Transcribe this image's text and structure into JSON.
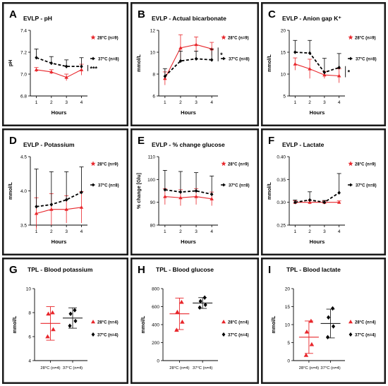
{
  "colors": {
    "warm": "#e8262b",
    "cold": "#000000",
    "border": "#1a1a1a"
  },
  "chart_data": [
    {
      "id": "A",
      "type": "line",
      "title": "EVLP - pH",
      "xlabel": "Hours",
      "ylabel": "pH",
      "x": [
        1,
        2,
        3,
        4
      ],
      "xlim": [
        0.6,
        4.4
      ],
      "ylim": [
        6.8,
        7.4
      ],
      "yticks": [
        "6.8",
        "7.0",
        "7.2",
        "7.4"
      ],
      "ytick_vals": [
        6.8,
        7.0,
        7.2,
        7.4
      ],
      "legend_warm": "28°C (n=9)",
      "legend_cold": "37°C (n=8)",
      "significance": "***",
      "series": [
        {
          "name": "28°C (n=9)",
          "values": [
            7.04,
            7.02,
            6.97,
            7.04
          ],
          "err": [
            0.02,
            0.02,
            0.03,
            0.05
          ]
        },
        {
          "name": "37°C (n=8)",
          "values": [
            7.15,
            7.1,
            7.07,
            7.07
          ],
          "err": [
            0.08,
            0.06,
            0.06,
            0.08
          ]
        }
      ]
    },
    {
      "id": "B",
      "type": "line",
      "title": "EVLP - Actual bicarbonate",
      "xlabel": "Hours",
      "ylabel": "mmol/L",
      "x": [
        1,
        2,
        3,
        4
      ],
      "xlim": [
        0.6,
        4.4
      ],
      "ylim": [
        6,
        12
      ],
      "yticks": [
        "6",
        "8",
        "10",
        "12"
      ],
      "ytick_vals": [
        6,
        8,
        10,
        12
      ],
      "legend_warm": "28°C (n=9)",
      "legend_cold": "37°C (n=8)",
      "significance": "*",
      "series": [
        {
          "name": "28°C (n=9)",
          "values": [
            7.6,
            10.4,
            10.7,
            10.3
          ],
          "err": [
            0.6,
            1.2,
            0.7,
            0.6
          ]
        },
        {
          "name": "37°C (n=8)",
          "values": [
            7.8,
            9.2,
            9.4,
            9.3
          ],
          "err": [
            0.7,
            0.9,
            0.7,
            1.0
          ]
        }
      ]
    },
    {
      "id": "C",
      "type": "line",
      "title": "EVLP - Anion gap K⁺",
      "xlabel": "Hours",
      "ylabel": "mmol/L",
      "x": [
        1,
        2,
        3,
        4
      ],
      "xlim": [
        0.6,
        4.4
      ],
      "ylim": [
        5,
        20
      ],
      "yticks": [
        "5",
        "10",
        "15",
        "20"
      ],
      "ytick_vals": [
        5,
        10,
        15,
        20
      ],
      "legend_warm": "28°C (n=9)",
      "legend_cold": "37°C (n=8)",
      "significance": "*",
      "series": [
        {
          "name": "28°C (n=9)",
          "values": [
            12.3,
            11.2,
            9.8,
            9.6
          ],
          "err": [
            1.4,
            2.2,
            0.8,
            1.6
          ]
        },
        {
          "name": "37°C (n=8)",
          "values": [
            15.0,
            14.8,
            10.4,
            11.5
          ],
          "err": [
            2.7,
            2.9,
            3.2,
            3.2
          ]
        }
      ]
    },
    {
      "id": "D",
      "type": "line",
      "title": "EVLP - Potassium",
      "xlabel": "Hours",
      "ylabel": "mmol/L",
      "x": [
        1,
        2,
        3,
        4
      ],
      "xlim": [
        0.6,
        4.4
      ],
      "ylim": [
        3.5,
        4.5
      ],
      "yticks": [
        "3.5",
        "4.0",
        "4.5"
      ],
      "ytick_vals": [
        3.5,
        4.0,
        4.5
      ],
      "legend_warm": "28°C (n=9)",
      "legend_cold": "37°C (n=8)",
      "significance": "",
      "series": [
        {
          "name": "28°C (n=9)",
          "values": [
            3.67,
            3.73,
            3.73,
            3.76
          ],
          "err": [
            0.23,
            0.23,
            0.2,
            0.23
          ]
        },
        {
          "name": "37°C (n=8)",
          "values": [
            3.77,
            3.8,
            3.87,
            3.98
          ],
          "err": [
            0.55,
            0.48,
            0.41,
            0.37
          ]
        }
      ]
    },
    {
      "id": "E",
      "type": "line",
      "title": "EVLP - % change  glucose",
      "xlabel": "Hours",
      "ylabel": "% change [Glu]",
      "x": [
        1,
        2,
        3,
        4
      ],
      "xlim": [
        0.6,
        4.4
      ],
      "ylim": [
        80,
        110
      ],
      "yticks": [
        "80",
        "90",
        "100",
        "110"
      ],
      "ytick_vals": [
        80,
        90,
        100,
        110
      ],
      "legend_warm": "28°C (n=9)",
      "legend_cold": "37°C (n=8)",
      "significance": "",
      "series": [
        {
          "name": "28°C (n=9)",
          "values": [
            92.5,
            92.0,
            92.5,
            91.5
          ],
          "err": [
            3.5,
            3.5,
            3.5,
            3.0
          ]
        },
        {
          "name": "37°C (n=8)",
          "values": [
            95.5,
            94.5,
            95.0,
            93.5
          ],
          "err": [
            8.5,
            9.0,
            8.0,
            8.0
          ]
        }
      ]
    },
    {
      "id": "F",
      "type": "line",
      "title": "EVLP - Lactate",
      "xlabel": "Hours",
      "ylabel": "mmol/L",
      "x": [
        1,
        2,
        3,
        4
      ],
      "xlim": [
        0.6,
        4.4
      ],
      "ylim": [
        0.25,
        0.4
      ],
      "yticks": [
        "0.25",
        "0.30",
        "0.35",
        "0.40"
      ],
      "ytick_vals": [
        0.25,
        0.3,
        0.35,
        0.4
      ],
      "legend_warm": "28°C (n=9)",
      "legend_cold": "37°C (n=8)",
      "significance": "",
      "series": [
        {
          "name": "28°C (n=9)",
          "values": [
            0.3,
            0.3,
            0.3,
            0.3
          ],
          "err": [
            0.003,
            0.004,
            0.003,
            0.003
          ]
        },
        {
          "name": "37°C (n=8)",
          "values": [
            0.3,
            0.305,
            0.3,
            0.321
          ],
          "err": [
            0.005,
            0.018,
            0.004,
            0.042
          ]
        }
      ]
    },
    {
      "id": "G",
      "type": "scatter",
      "title": "TPL - Blood potassium",
      "xlabel": "",
      "ylabel": "mmol/L",
      "categories": [
        "28°C (n=4)",
        "37°C (n=4)"
      ],
      "ylim": [
        4,
        10
      ],
      "yticks": [
        "4",
        "6",
        "8",
        "10"
      ],
      "ytick_vals": [
        4,
        6,
        8,
        10
      ],
      "legend_warm": "28°C (n=4)",
      "legend_cold": "37°C (n=4)",
      "groups": [
        {
          "name": "28°C (n=4)",
          "points": [
            6.0,
            6.6,
            7.9,
            8.0
          ],
          "mean": 7.1,
          "sd": 1.4
        },
        {
          "name": "37°C (n=4)",
          "points": [
            6.9,
            7.3,
            7.9,
            8.2
          ],
          "mean": 7.55,
          "sd": 0.85
        }
      ]
    },
    {
      "id": "H",
      "type": "scatter",
      "title": "TPL - Blood glucose",
      "xlabel": "",
      "ylabel": "mmol/L",
      "categories": [
        "28°C (n=4)",
        "37°C (n=4)"
      ],
      "ylim": [
        0,
        800
      ],
      "yticks": [
        "0",
        "200",
        "400",
        "600",
        "800"
      ],
      "ytick_vals": [
        0,
        200,
        400,
        600,
        800
      ],
      "legend_warm": "28°C (n=4)",
      "legend_cold": "37°C (n=4)",
      "groups": [
        {
          "name": "28°C (n=4)",
          "points": [
            340,
            430,
            540,
            650
          ],
          "mean": 520,
          "sd": 175
        },
        {
          "name": "37°C (n=4)",
          "points": [
            590,
            620,
            660,
            700
          ],
          "mean": 640,
          "sd": 60
        }
      ]
    },
    {
      "id": "I",
      "type": "scatter",
      "title": "TPL - Blood lactate",
      "xlabel": "",
      "ylabel": "mmol/L",
      "categories": [
        "28°C (n=4)",
        "37°C (n=4)"
      ],
      "ylim": [
        0,
        20
      ],
      "yticks": [
        "0",
        "5",
        "10",
        "15",
        "20"
      ],
      "ytick_vals": [
        0,
        5,
        10,
        15,
        20
      ],
      "legend_warm": "28°C (n=4)",
      "legend_cold": "37°C (n=4)",
      "groups": [
        {
          "name": "28°C (n=4)",
          "points": [
            1.5,
            4.5,
            8.0,
            11.0
          ],
          "mean": 6.5,
          "sd": 4.5
        },
        {
          "name": "37°C (n=4)",
          "points": [
            6.5,
            9.5,
            12.0,
            14.5
          ],
          "mean": 10.3,
          "sd": 4.0
        }
      ]
    }
  ]
}
